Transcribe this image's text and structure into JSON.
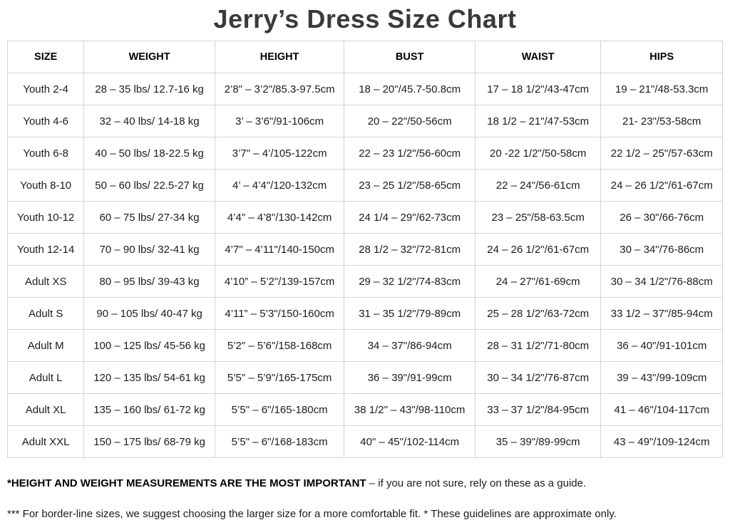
{
  "title": "Jerry’s Dress Size Chart",
  "table": {
    "headers": [
      "SIZE",
      "WEIGHT",
      "HEIGHT",
      "BUST",
      "WAIST",
      "HIPS"
    ],
    "rows": [
      [
        "Youth 2-4",
        "28 – 35 lbs/ 12.7-16 kg",
        "2’8\" – 3’2\"/85.3-97.5cm",
        "18 – 20\"/45.7-50.8cm",
        "17 – 18 1/2\"/43-47cm",
        "19 – 21\"/48-53.3cm"
      ],
      [
        "Youth 4-6",
        "32 – 40 lbs/ 14-18 kg",
        "3’ – 3’6\"/91-106cm",
        "20 – 22\"/50-56cm",
        "18 1/2 – 21\"/47-53cm",
        "21- 23\"/53-58cm"
      ],
      [
        "Youth 6-8",
        "40 – 50 lbs/ 18-22.5 kg",
        "3’7\" – 4’/105-122cm",
        "22 – 23 1/2\"/56-60cm",
        "20 -22 1/2\"/50-58cm",
        "22 1/2 – 25\"/57-63cm"
      ],
      [
        "Youth 8-10",
        "50 – 60 lbs/ 22.5-27 kg",
        "4’ – 4’4\"/120-132cm",
        "23 – 25 1/2\"/58-65cm",
        "22 – 24\"/56-61cm",
        "24 – 26 1/2\"/61-67cm"
      ],
      [
        "Youth 10-12",
        "60 – 75 lbs/ 27-34 kg",
        "4’4\" – 4’8\"/130-142cm",
        "24 1/4 – 29\"/62-73cm",
        "23 – 25\"/58-63.5cm",
        "26 – 30\"/66-76cm"
      ],
      [
        "Youth 12-14",
        "70 – 90 lbs/ 32-41 kg",
        "4’7\" – 4’11\"/140-150cm",
        "28 1/2 – 32\"/72-81cm",
        "24 – 26 1/2\"/61-67cm",
        "30 – 34\"/76-86cm"
      ],
      [
        "Adult XS",
        "80 – 95 lbs/ 39-43 kg",
        "4’10” – 5’2\"/139-157cm",
        "29 – 32 1/2\"/74-83cm",
        "24 – 27\"/61-69cm",
        "30 – 34 1/2\"/76-88cm"
      ],
      [
        "Adult S",
        "90 – 105 lbs/ 40-47 kg",
        "4’11” – 5’3\"/150-160cm",
        "31 – 35 1/2\"/79-89cm",
        "25 – 28 1/2\"/63-72cm",
        "33 1/2 – 37\"/85-94cm"
      ],
      [
        "Adult M",
        "100 – 125 lbs/ 45-56 kg",
        "5’2\" – 5’6\"/158-168cm",
        "34 – 37\"/86-94cm",
        "28 – 31 1/2\"/71-80cm",
        "36 – 40\"/91-101cm"
      ],
      [
        "Adult L",
        "120 – 135 lbs/ 54-61 kg",
        "5’5\" – 5’9\"/165-175cm",
        "36 – 39\"/91-99cm",
        "30 – 34 1/2\"/76-87cm",
        "39 – 43\"/99-109cm"
      ],
      [
        "Adult XL",
        "135 – 160 lbs/ 61-72 kg",
        "5’5\" – 6\"/165-180cm",
        "38 1/2\" – 43\"/98-110cm",
        "33 – 37 1/2\"/84-95cm",
        "41 – 46\"/104-117cm"
      ],
      [
        "Adult XXL",
        "150 – 175 lbs/ 68-79 kg",
        "5’5\" – 6\"/168-183cm",
        "40\" – 45\"/102-114cm",
        "35 – 39\"/89-99cm",
        "43 – 49\"/109-124cm"
      ]
    ]
  },
  "footnotes": {
    "line1_bold": "*HEIGHT AND WEIGHT MEASUREMENTS ARE THE MOST IMPORTANT",
    "line1_rest": " – if you are not sure, rely on these as a guide.",
    "line2": "*** For border-line sizes, we suggest choosing the larger size for a more comfortable fit. * These guidelines are approximate only."
  },
  "colors": {
    "title_text": "#3a3a3a",
    "cell_text": "#1c1c1c",
    "border": "#d4d4d4",
    "background": "#ffffff"
  }
}
